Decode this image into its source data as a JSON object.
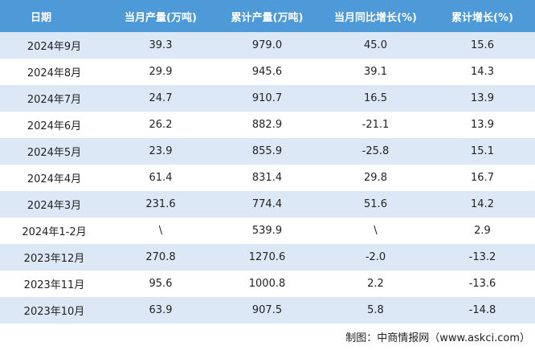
{
  "table": {
    "header": [
      "日期",
      "当月产量(万吨)",
      "累计产量(万吨)",
      "当月同比增长(%)",
      "累计增长(%)"
    ],
    "rows": [
      [
        "2024年9月",
        "39.3",
        "979.0",
        "45.0",
        "15.6"
      ],
      [
        "2024年8月",
        "29.9",
        "945.6",
        "39.1",
        "14.3"
      ],
      [
        "2024年7月",
        "24.7",
        "910.7",
        "16.5",
        "13.9"
      ],
      [
        "2024年6月",
        "26.2",
        "882.9",
        "-21.1",
        "13.9"
      ],
      [
        "2024年5月",
        "23.9",
        "855.9",
        "-25.8",
        "15.1"
      ],
      [
        "2024年4月",
        "61.4",
        "831.4",
        "29.8",
        "16.7"
      ],
      [
        "2024年3月",
        "231.6",
        "774.4",
        "51.6",
        "14.2"
      ],
      [
        "2024年1-2月",
        "\\",
        "539.9",
        "\\",
        "2.9"
      ],
      [
        "2023年12月",
        "270.8",
        "1270.6",
        "-2.0",
        "-13.2"
      ],
      [
        "2023年11月",
        "95.6",
        "1000.8",
        "2.2",
        "-13.6"
      ],
      [
        "2023年10月",
        "63.9",
        "907.5",
        "5.8",
        "-14.8"
      ]
    ]
  },
  "footer": "制图：中商情报网（www.askci.com）"
}
